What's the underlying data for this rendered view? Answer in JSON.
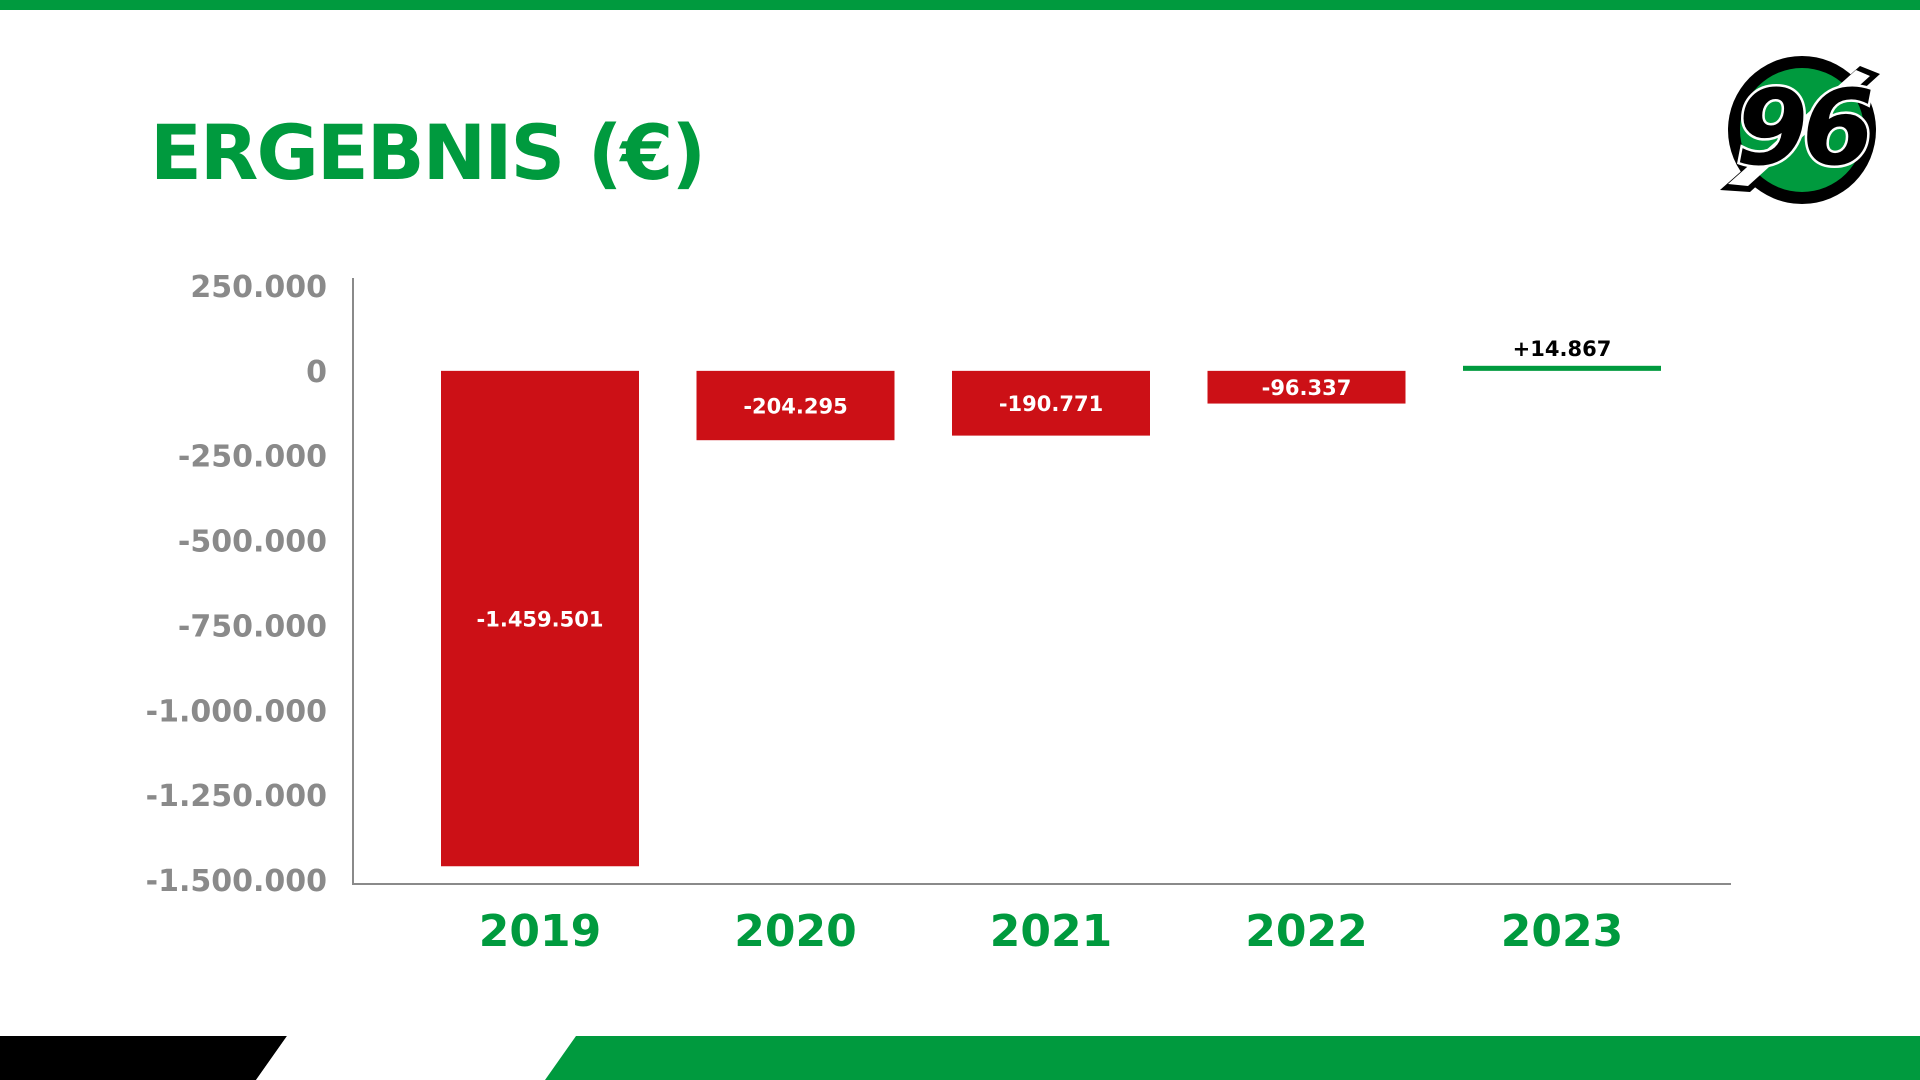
{
  "slide": {
    "title": "ERGEBNIS (€)",
    "colors": {
      "brand_green": "#009a3e",
      "negative_bar": "#cc1016",
      "positive_bar": "#009a3e",
      "axis_text": "#8a8a8a"
    },
    "logo": {
      "icon": "hannover-96-logo-icon",
      "text": "96"
    }
  },
  "chart_data": {
    "type": "bar",
    "title": "ERGEBNIS (€)",
    "xlabel": "",
    "ylabel": "",
    "categories": [
      "2019",
      "2020",
      "2021",
      "2022",
      "2023"
    ],
    "values": [
      -1459501,
      -204295,
      -190771,
      -96337,
      14867
    ],
    "value_labels": [
      "-1.459.501",
      "-204.295",
      "-190.771",
      "-96.337",
      "+14.867"
    ],
    "ylim": [
      -1500000,
      250000
    ],
    "yticks": [
      250000,
      0,
      -250000,
      -500000,
      -750000,
      -1000000,
      -1250000,
      -1500000
    ],
    "ytick_labels": [
      "250.000",
      "0",
      "-250.000",
      "-500.000",
      "-750.000",
      "-1.000.000",
      "-1.250.000",
      "-1.500.000"
    ],
    "grid": false,
    "legend": "none"
  }
}
